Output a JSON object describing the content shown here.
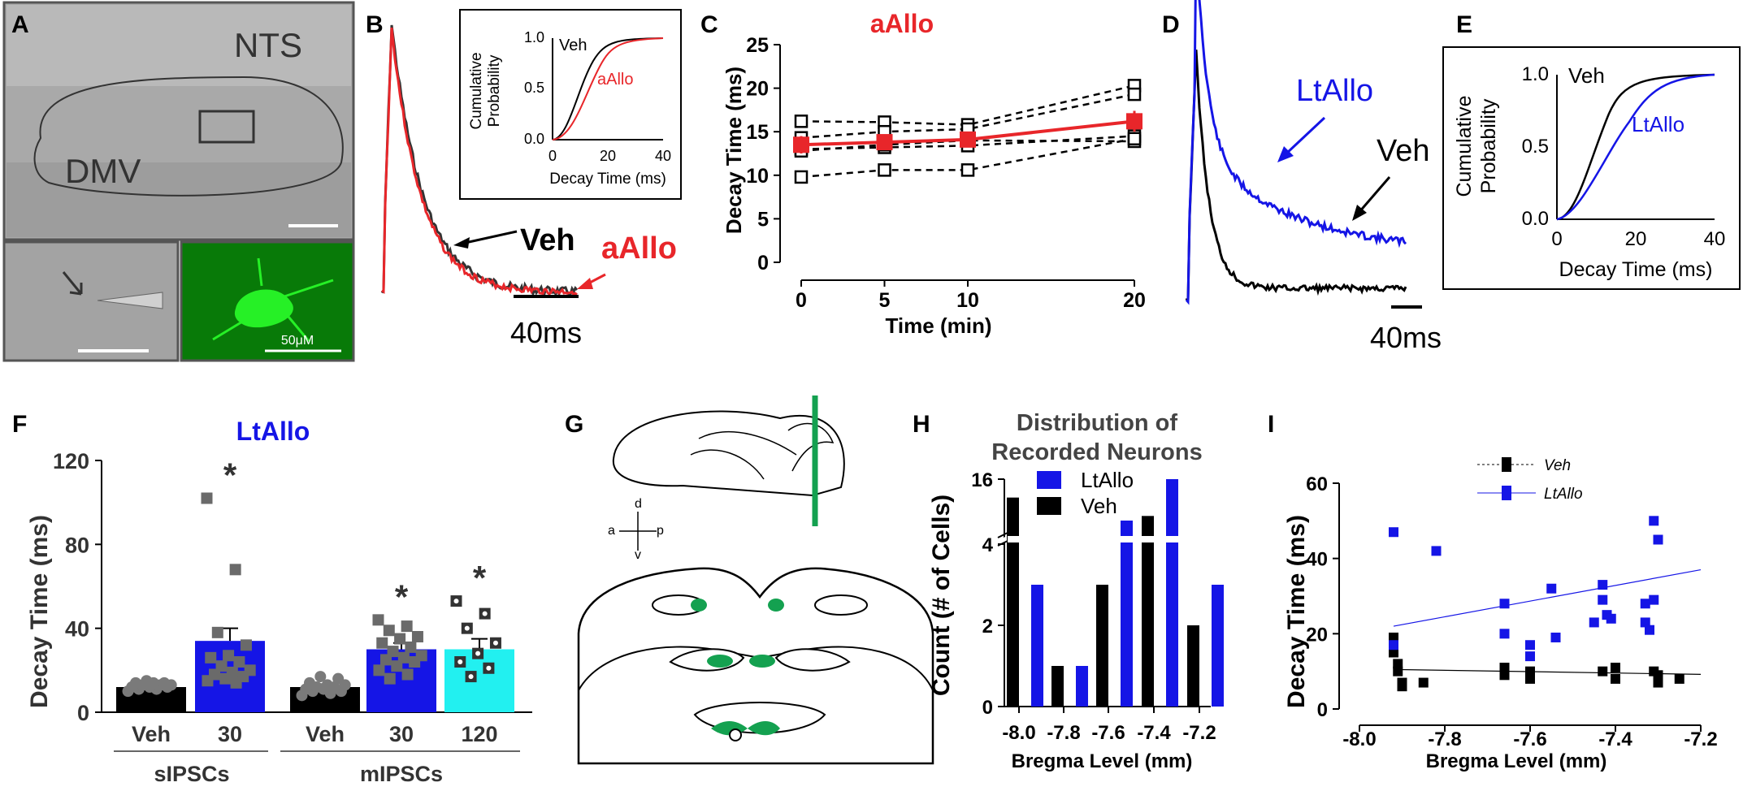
{
  "panel_letters": {
    "A": "A",
    "B": "B",
    "C": "C",
    "D": "D",
    "E": "E",
    "F": "F",
    "G": "G",
    "H": "H",
    "I": "I"
  },
  "colors": {
    "red": "#e8262a",
    "blue": "#1515e6",
    "cyan": "#22f0f0",
    "green": "#14a150",
    "black": "#000000",
    "gray": "#6a6a6a",
    "micro_green": "#1bc21b"
  },
  "panel_a": {
    "label_nts": "NTS",
    "label_dmv": "DMV",
    "scale_label": "50μM"
  },
  "panel_b": {
    "scale_label": "40ms",
    "label_veh": "Veh",
    "label_aallo": "aAllo",
    "inset": {
      "ylabel": "Cumulative Probability",
      "ylabel_line1": "Cumulative",
      "ylabel_line2": "Probability",
      "xlabel": "Decay Time (ms)",
      "yticks": [
        "0.0",
        "0.5",
        "1.0"
      ],
      "xticks": [
        "0",
        "20",
        "40"
      ],
      "legend_veh": "Veh",
      "legend_aallo": "aAllo"
    }
  },
  "panel_d": {
    "scale_label": "40ms",
    "label_veh": "Veh",
    "label_ltallo": "LtAllo"
  },
  "panel_e": {
    "xlabel": "Decay Time (ms)",
    "ylabel_line1": "Cumulative",
    "ylabel_line2": "Probability",
    "yticks": [
      "0.0",
      "0.5",
      "1.0"
    ],
    "xticks": [
      "0",
      "20",
      "40"
    ],
    "legend_veh": "Veh",
    "legend_ltallo": "LtAllo"
  },
  "panel_g": {
    "dir_d": "d",
    "dir_v": "v",
    "dir_a": "a",
    "dir_p": "p"
  },
  "chart_data": [
    {
      "id": "C",
      "type": "line",
      "title": "aAllo",
      "xlabel": "Time (min)",
      "ylabel": "Decay Time (ms)",
      "x": [
        0,
        5,
        10,
        20
      ],
      "xticks": [
        "0",
        "5",
        "10",
        "20"
      ],
      "yticks": [
        "0",
        "5",
        "10",
        "15",
        "20",
        "25"
      ],
      "ylim": [
        0,
        25
      ],
      "individual": [
        [
          16.2,
          16.1,
          15.8,
          20.3
        ],
        [
          14.3,
          15.0,
          15.3,
          19.3
        ],
        [
          13.0,
          13.2,
          13.4,
          14.5
        ],
        [
          12.8,
          13.5,
          14.0,
          13.9
        ],
        [
          9.8,
          10.6,
          10.6,
          14.2
        ]
      ],
      "series": [
        {
          "name": "mean",
          "values": [
            13.5,
            13.8,
            14.1,
            16.2
          ],
          "sem": [
            1.0,
            0.9,
            0.9,
            1.2
          ]
        }
      ]
    },
    {
      "id": "F",
      "type": "bar",
      "title": "LtAllo",
      "ylabel": "Decay Time (ms)",
      "ylim": [
        0,
        120
      ],
      "yticks": [
        "0",
        "40",
        "80",
        "120"
      ],
      "categories": [
        "Veh",
        "30",
        "Veh",
        "30",
        "120"
      ],
      "groups": [
        "sIPSCs",
        "mIPSCs"
      ],
      "significance": "*",
      "values": [
        12,
        34,
        12,
        30,
        30
      ],
      "sem": [
        1,
        6,
        1.5,
        3,
        5
      ],
      "points": [
        [
          10,
          11,
          11,
          12,
          12,
          12,
          13,
          13,
          13,
          14,
          14,
          14,
          15
        ],
        [
          102,
          68,
          38,
          32,
          27,
          26,
          24,
          22,
          20,
          19,
          18,
          17,
          16,
          15,
          14
        ],
        [
          8,
          9,
          10,
          10,
          11,
          11,
          12,
          12,
          13,
          13,
          14,
          16,
          17
        ],
        [
          44,
          41,
          39,
          36,
          35,
          33,
          31,
          29,
          27,
          26,
          25,
          24,
          22,
          20,
          18,
          16
        ],
        [
          53,
          47,
          40,
          33,
          28,
          24,
          21,
          17
        ]
      ]
    },
    {
      "id": "H",
      "type": "bar",
      "title": "Distribution of Recorded Neurons",
      "title_line1": "Distribution of",
      "title_line2": "Recorded Neurons",
      "xlabel": "Bregma Level (mm)",
      "ylabel": "Count (# of Cells)",
      "categories": [
        "-8.0",
        "-7.8",
        "-7.6",
        "-7.4",
        "-7.2"
      ],
      "yticks": [
        "0",
        "2",
        "4",
        "16"
      ],
      "series": [
        {
          "name": "Veh",
          "values": [
            12,
            1,
            3,
            8,
            2
          ]
        },
        {
          "name": "LtAllo",
          "values": [
            3,
            1,
            7,
            16,
            3
          ]
        }
      ]
    },
    {
      "id": "I",
      "type": "scatter",
      "xlabel": "Bregma Level (mm)",
      "ylabel": "Decay Time (ms)",
      "xlim": [
        -8.0,
        -7.2
      ],
      "ylim": [
        0,
        60
      ],
      "xticks": [
        "-8.0",
        "-7.8",
        "-7.6",
        "-7.4",
        "-7.2"
      ],
      "yticks": [
        "0",
        "20",
        "40",
        "60"
      ],
      "series": [
        {
          "name": "Veh",
          "x": [
            -7.92,
            -7.92,
            -7.91,
            -7.91,
            -7.9,
            -7.9,
            -7.85,
            -7.66,
            -7.66,
            -7.6,
            -7.6,
            -7.43,
            -7.4,
            -7.4,
            -7.31,
            -7.3,
            -7.3,
            -7.25
          ],
          "y": [
            19,
            15,
            12,
            10,
            7,
            6,
            7,
            11,
            9,
            10,
            8,
            10,
            11,
            8,
            10,
            9,
            7,
            8
          ],
          "fit": [
            10.5,
            9.2
          ]
        },
        {
          "name": "LtAllo",
          "x": [
            -7.92,
            -7.92,
            -7.82,
            -7.66,
            -7.66,
            -7.6,
            -7.6,
            -7.55,
            -7.54,
            -7.45,
            -7.43,
            -7.43,
            -7.42,
            -7.41,
            -7.33,
            -7.33,
            -7.32,
            -7.31,
            -7.31,
            -7.3
          ],
          "y": [
            47,
            17,
            42,
            28,
            20,
            17,
            14,
            32,
            19,
            23,
            33,
            29,
            25,
            24,
            28,
            23,
            21,
            29,
            50,
            45
          ],
          "fit": [
            22,
            37
          ]
        }
      ]
    }
  ]
}
